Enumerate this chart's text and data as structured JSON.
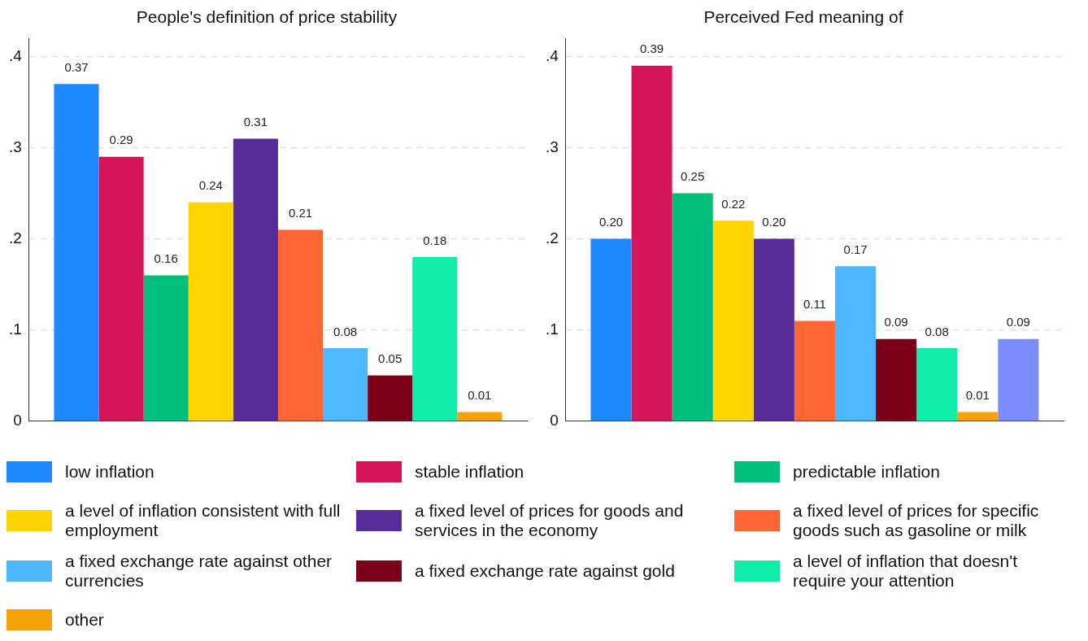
{
  "chart_data": [
    {
      "type": "bar",
      "title": "People's definition of price stability",
      "categories": [
        null
      ],
      "ylim": [
        0,
        0.42
      ],
      "yticks": [
        {
          "value": 0,
          "label": "0"
        },
        {
          "value": 0.1,
          "label": ".1"
        },
        {
          "value": 0.2,
          "label": ".2"
        },
        {
          "value": 0.3,
          "label": ".3"
        },
        {
          "value": 0.4,
          "label": ".4"
        }
      ],
      "grid": "y",
      "legend": "bottom",
      "series": [
        {
          "name": "low inflation",
          "color": "#1e88ff",
          "values": [
            0.37
          ],
          "value_labels": [
            "0.37"
          ]
        },
        {
          "name": "stable inflation",
          "color": "#d6145a",
          "values": [
            0.29
          ],
          "value_labels": [
            "0.29"
          ]
        },
        {
          "name": "predictable inflation",
          "color": "#00bf7d",
          "values": [
            0.16
          ],
          "value_labels": [
            "0.16"
          ]
        },
        {
          "name": "a level of inflation consistent with full employment",
          "color": "#ffd400",
          "values": [
            0.24
          ],
          "value_labels": [
            "0.24"
          ]
        },
        {
          "name": "a fixed level of prices for goods and services in the economy",
          "color": "#552c9a",
          "values": [
            0.31
          ],
          "value_labels": [
            "0.31"
          ]
        },
        {
          "name": "a fixed level of prices for specific goods such as gasoline or milk",
          "color": "#ff6633",
          "values": [
            0.21
          ],
          "value_labels": [
            "0.21"
          ]
        },
        {
          "name": "a fixed exchange rate against other currencies",
          "color": "#4db8ff",
          "values": [
            0.08
          ],
          "value_labels": [
            "0.08"
          ]
        },
        {
          "name": "a fixed exchange rate against gold",
          "color": "#7a0019",
          "values": [
            0.05
          ],
          "value_labels": [
            "0.05"
          ]
        },
        {
          "name": "a level of inflation that doesn't require your attention",
          "color": "#11eeaa",
          "values": [
            0.18
          ],
          "value_labels": [
            "0.18"
          ]
        },
        {
          "name": "other",
          "color": "#f5a20a",
          "values": [
            0.01
          ],
          "value_labels": [
            "0.01"
          ]
        }
      ]
    },
    {
      "type": "bar",
      "title": "Perceived Fed meaning of",
      "categories": [
        null
      ],
      "ylim": [
        0,
        0.42
      ],
      "yticks": [
        {
          "value": 0,
          "label": "0"
        },
        {
          "value": 0.1,
          "label": ".1"
        },
        {
          "value": 0.2,
          "label": ".2"
        },
        {
          "value": 0.3,
          "label": ".3"
        },
        {
          "value": 0.4,
          "label": ".4"
        }
      ],
      "grid": "y",
      "series": [
        {
          "color": "#1e88ff",
          "values": [
            0.2
          ],
          "value_labels": [
            "0.20"
          ]
        },
        {
          "color": "#d6145a",
          "values": [
            0.39
          ],
          "value_labels": [
            "0.39"
          ]
        },
        {
          "color": "#00bf7d",
          "values": [
            0.25
          ],
          "value_labels": [
            "0.25"
          ]
        },
        {
          "color": "#ffd400",
          "values": [
            0.22
          ],
          "value_labels": [
            "0.22"
          ]
        },
        {
          "color": "#552c9a",
          "values": [
            0.2
          ],
          "value_labels": [
            "0.20"
          ]
        },
        {
          "color": "#ff6633",
          "values": [
            0.11
          ],
          "value_labels": [
            "0.11"
          ]
        },
        {
          "color": "#4db8ff",
          "values": [
            0.17
          ],
          "value_labels": [
            "0.17"
          ]
        },
        {
          "color": "#7a0019",
          "values": [
            0.09
          ],
          "value_labels": [
            "0.09"
          ]
        },
        {
          "color": "#11eeaa",
          "values": [
            0.08
          ],
          "value_labels": [
            "0.08"
          ]
        },
        {
          "color": "#f5a20a",
          "values": [
            0.01
          ],
          "value_labels": [
            "0.01"
          ]
        },
        {
          "color": "#7b8cff",
          "values": [
            0.09
          ],
          "value_labels": [
            "0.09"
          ]
        }
      ]
    }
  ]
}
